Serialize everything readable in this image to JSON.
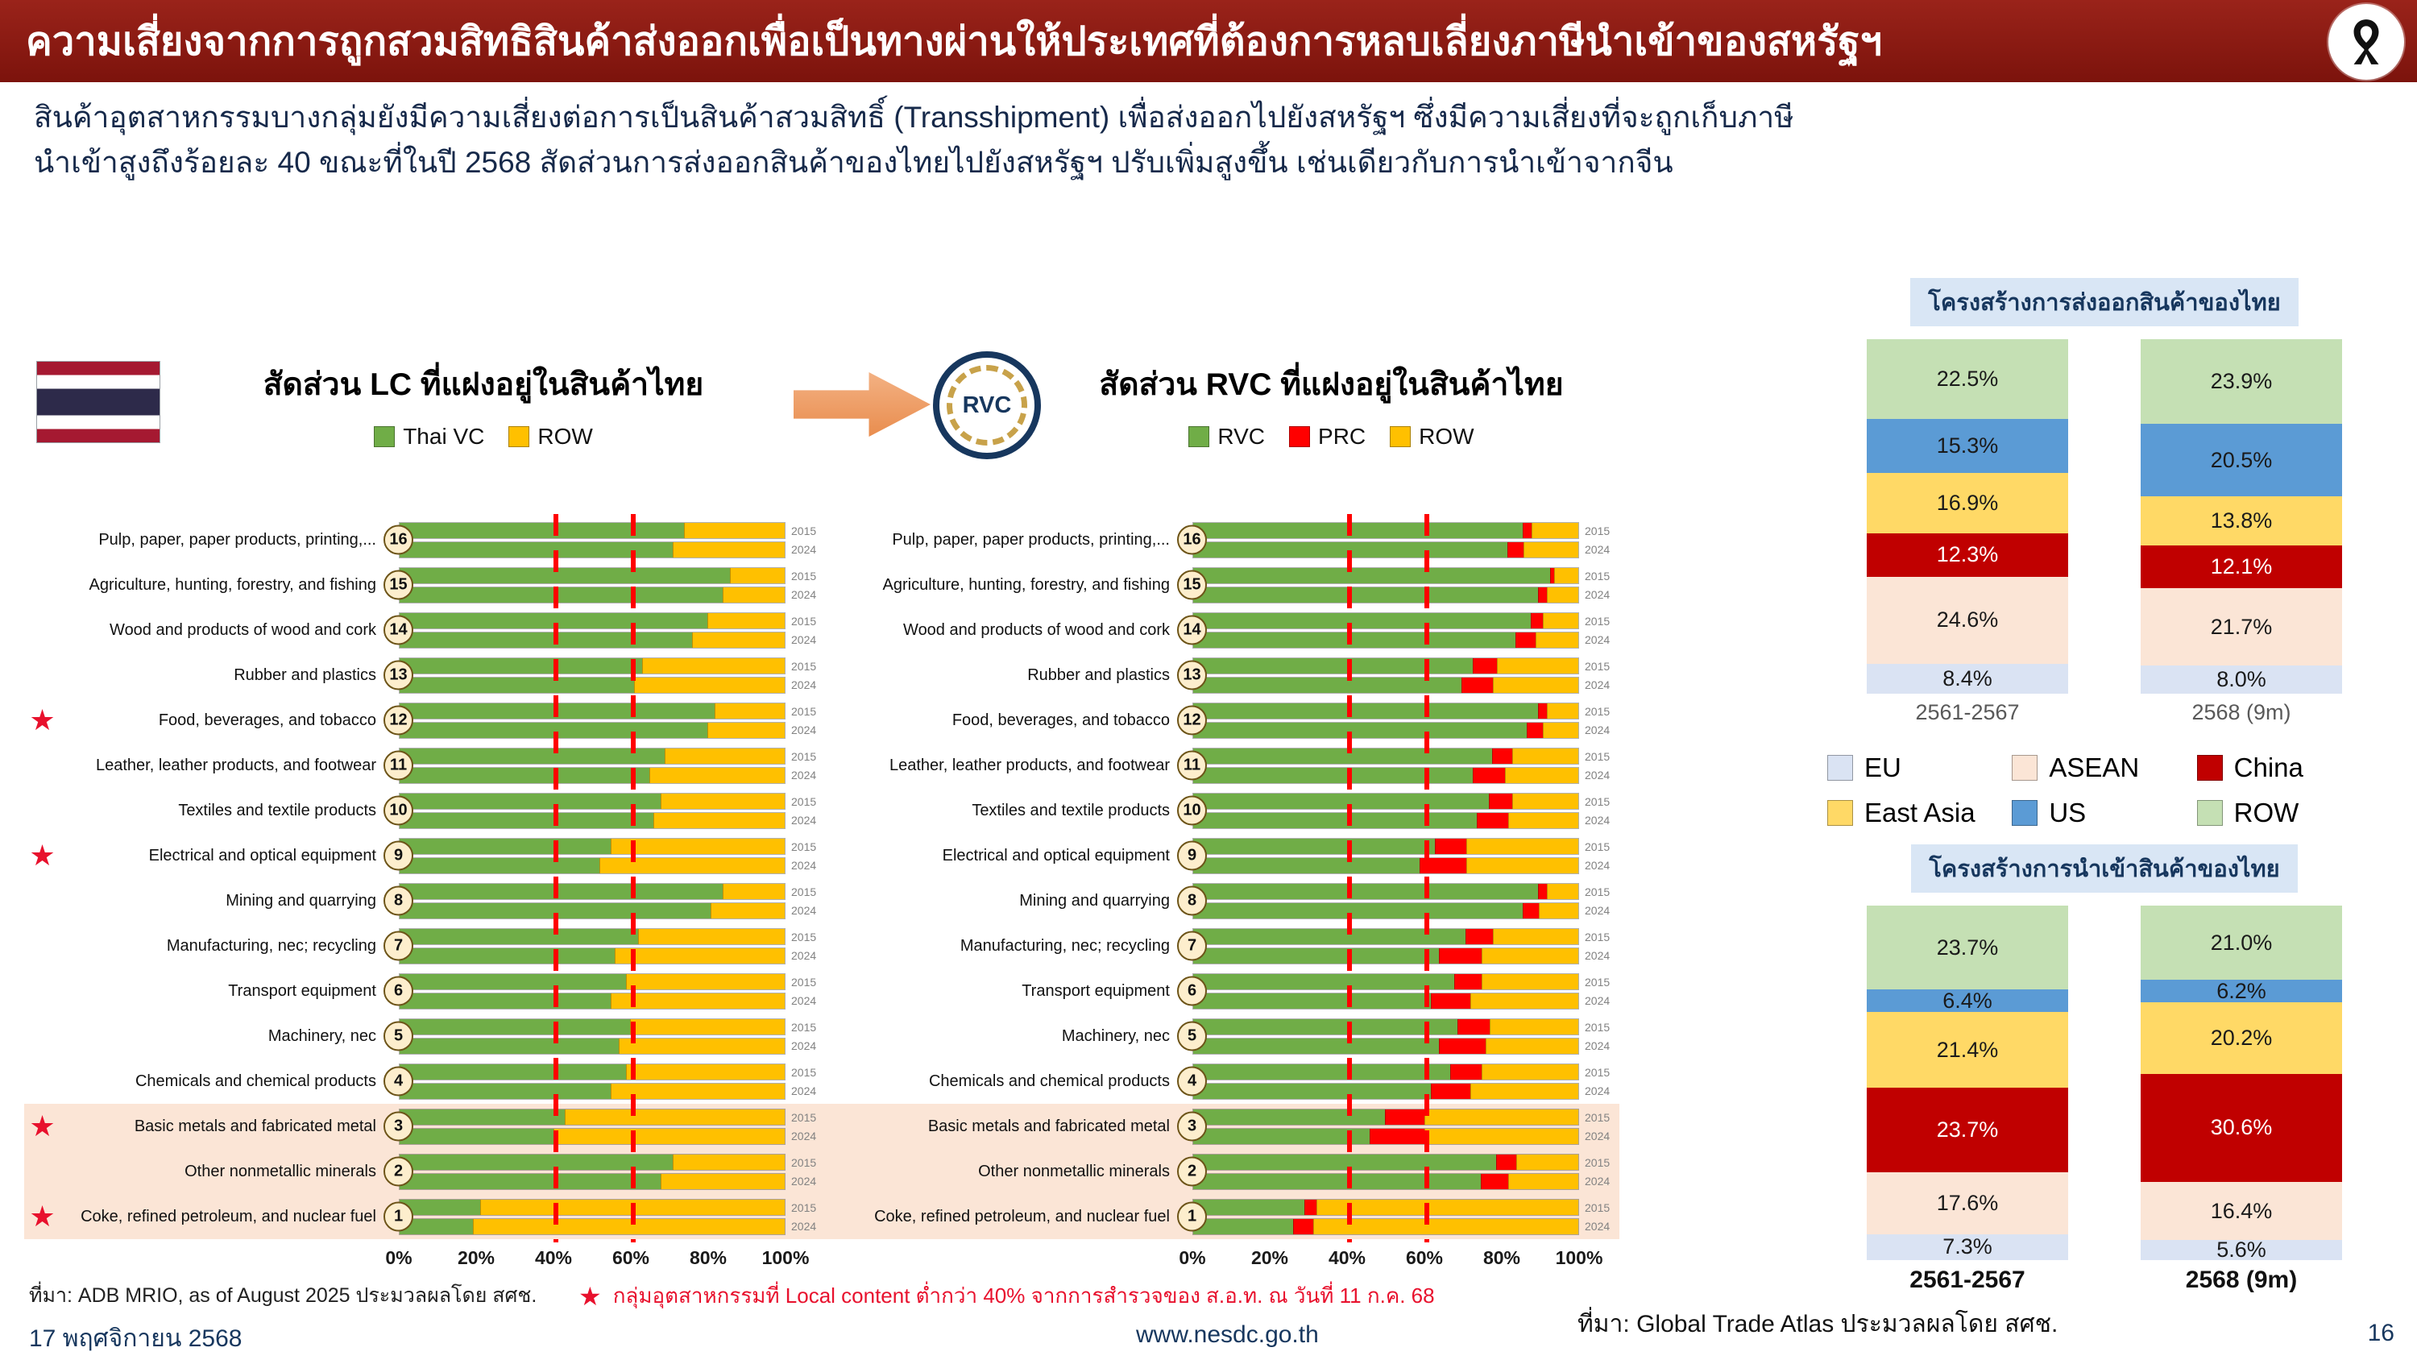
{
  "header": {
    "title": "ความเสี่ยงจากการถูกสวมสิทธิสินค้าส่งออกเพื่อเป็นทางผ่านให้ประเทศที่ต้องการหลบเลี่ยงภาษีนำเข้าของสหรัฐฯ"
  },
  "icons": {
    "ribbon": "mourning-ribbon-icon",
    "flag": "thailand-flag-icon",
    "arrow": "arrow-right-icon",
    "rvc_badge": "rvc-circle-icon",
    "star": "★"
  },
  "labels": {
    "rvc_badge": "RVC"
  },
  "colors": {
    "header_bg": "#8c1712",
    "highlight_band": "#fbe5d6",
    "dashed_line": "#ff0000",
    "star": "#e8112d",
    "title_badge_bg": "#d9e6f5"
  },
  "intro": "สินค้าอุตสาหกรรมบางกลุ่มยังมีความเสี่ยงต่อการเป็นสินค้าสวมสิทธิ์ (Transshipment) เพื่อส่งออกไปยังสหรัฐฯ ซึ่งมีความเสี่ยงที่จะถูกเก็บภาษีนำเข้าสูงถึงร้อยละ 40 ขณะที่ในปี 2568 สัดส่วนการส่งออกสินค้าของไทยไปยังสหรัฐฯ ปรับเพิ่มสูงขึ้น เช่นเดียวกับการนำเข้าจากจีน",
  "chart_data": [
    {
      "id": "lc",
      "type": "bar",
      "orientation": "horizontal",
      "stacked": true,
      "title": "สัดส่วน LC ที่แฝงอยู่ในสินค้าไทย",
      "year_labels": [
        "2015",
        "2024"
      ],
      "x_ticks": [
        "0%",
        "20%",
        "40%",
        "60%",
        "80%",
        "100%"
      ],
      "xlim": [
        0,
        100
      ],
      "dashed_lines_pct": [
        40,
        60
      ],
      "legend": [
        {
          "label": "Thai VC",
          "color": "#70ad47"
        },
        {
          "label": "ROW",
          "color": "#ffc000"
        }
      ],
      "rows": [
        {
          "num": 16,
          "label": "Pulp, paper, paper products, printing,...",
          "star": false,
          "highlight": false,
          "values": {
            "y2015": [
              74,
              26
            ],
            "y2024": [
              71,
              29
            ]
          }
        },
        {
          "num": 15,
          "label": "Agriculture, hunting, forestry, and fishing",
          "star": false,
          "highlight": false,
          "values": {
            "y2015": [
              86,
              14
            ],
            "y2024": [
              84,
              16
            ]
          }
        },
        {
          "num": 14,
          "label": "Wood and products of wood and cork",
          "star": false,
          "highlight": false,
          "values": {
            "y2015": [
              80,
              20
            ],
            "y2024": [
              76,
              24
            ]
          }
        },
        {
          "num": 13,
          "label": "Rubber and plastics",
          "star": false,
          "highlight": false,
          "values": {
            "y2015": [
              63,
              37
            ],
            "y2024": [
              61,
              39
            ]
          }
        },
        {
          "num": 12,
          "label": "Food, beverages, and tobacco",
          "star": true,
          "highlight": false,
          "values": {
            "y2015": [
              82,
              18
            ],
            "y2024": [
              80,
              20
            ]
          }
        },
        {
          "num": 11,
          "label": "Leather, leather products, and footwear",
          "star": false,
          "highlight": false,
          "values": {
            "y2015": [
              69,
              31
            ],
            "y2024": [
              65,
              35
            ]
          }
        },
        {
          "num": 10,
          "label": "Textiles and textile products",
          "star": false,
          "highlight": false,
          "values": {
            "y2015": [
              68,
              32
            ],
            "y2024": [
              66,
              34
            ]
          }
        },
        {
          "num": 9,
          "label": "Electrical and optical equipment",
          "star": true,
          "highlight": false,
          "values": {
            "y2015": [
              55,
              45
            ],
            "y2024": [
              52,
              48
            ]
          }
        },
        {
          "num": 8,
          "label": "Mining and quarrying",
          "star": false,
          "highlight": false,
          "values": {
            "y2015": [
              84,
              16
            ],
            "y2024": [
              81,
              19
            ]
          }
        },
        {
          "num": 7,
          "label": "Manufacturing, nec; recycling",
          "star": false,
          "highlight": false,
          "values": {
            "y2015": [
              62,
              38
            ],
            "y2024": [
              56,
              44
            ]
          }
        },
        {
          "num": 6,
          "label": "Transport equipment",
          "star": false,
          "highlight": false,
          "values": {
            "y2015": [
              59,
              41
            ],
            "y2024": [
              55,
              45
            ]
          }
        },
        {
          "num": 5,
          "label": "Machinery, nec",
          "star": false,
          "highlight": false,
          "values": {
            "y2015": [
              60,
              40
            ],
            "y2024": [
              57,
              43
            ]
          }
        },
        {
          "num": 4,
          "label": "Chemicals and chemical products",
          "star": false,
          "highlight": false,
          "values": {
            "y2015": [
              59,
              41
            ],
            "y2024": [
              55,
              45
            ]
          }
        },
        {
          "num": 3,
          "label": "Basic metals and fabricated metal",
          "star": true,
          "highlight": true,
          "values": {
            "y2015": [
              43,
              57
            ],
            "y2024": [
              40,
              60
            ]
          }
        },
        {
          "num": 2,
          "label": "Other nonmetallic minerals",
          "star": false,
          "highlight": true,
          "values": {
            "y2015": [
              71,
              29
            ],
            "y2024": [
              68,
              32
            ]
          }
        },
        {
          "num": 1,
          "label": "Coke, refined petroleum, and nuclear fuel",
          "star": true,
          "highlight": true,
          "values": {
            "y2015": [
              21,
              79
            ],
            "y2024": [
              19,
              81
            ]
          }
        }
      ]
    },
    {
      "id": "rvc",
      "type": "bar",
      "orientation": "horizontal",
      "stacked": true,
      "title": "สัดส่วน RVC ที่แฝงอยู่ในสินค้าไทย",
      "year_labels": [
        "2015",
        "2024"
      ],
      "x_ticks": [
        "0%",
        "20%",
        "40%",
        "60%",
        "80%",
        "100%"
      ],
      "xlim": [
        0,
        100
      ],
      "dashed_lines_pct": [
        40,
        60
      ],
      "legend": [
        {
          "label": "RVC",
          "color": "#70ad47"
        },
        {
          "label": "PRC",
          "color": "#ff0000"
        },
        {
          "label": "ROW",
          "color": "#ffc000"
        }
      ],
      "rows": [
        {
          "num": 16,
          "label": "Pulp, paper, paper products, printing,...",
          "star": false,
          "highlight": false,
          "values": {
            "y2015": [
              86,
              2,
              12
            ],
            "y2024": [
              82,
              4,
              14
            ]
          }
        },
        {
          "num": 15,
          "label": "Agriculture, hunting, forestry, and fishing",
          "star": false,
          "highlight": false,
          "values": {
            "y2015": [
              93,
              1,
              6
            ],
            "y2024": [
              90,
              2,
              8
            ]
          }
        },
        {
          "num": 14,
          "label": "Wood and products of wood and cork",
          "star": false,
          "highlight": false,
          "values": {
            "y2015": [
              88,
              3,
              9
            ],
            "y2024": [
              84,
              5,
              11
            ]
          }
        },
        {
          "num": 13,
          "label": "Rubber and plastics",
          "star": false,
          "highlight": false,
          "values": {
            "y2015": [
              73,
              6,
              21
            ],
            "y2024": [
              70,
              8,
              22
            ]
          }
        },
        {
          "num": 12,
          "label": "Food, beverages, and tobacco",
          "star": false,
          "highlight": false,
          "values": {
            "y2015": [
              90,
              2,
              8
            ],
            "y2024": [
              87,
              4,
              9
            ]
          }
        },
        {
          "num": 11,
          "label": "Leather, leather products, and footwear",
          "star": false,
          "highlight": false,
          "values": {
            "y2015": [
              78,
              5,
              17
            ],
            "y2024": [
              73,
              8,
              19
            ]
          }
        },
        {
          "num": 10,
          "label": "Textiles and textile products",
          "star": false,
          "highlight": false,
          "values": {
            "y2015": [
              77,
              6,
              17
            ],
            "y2024": [
              74,
              8,
              18
            ]
          }
        },
        {
          "num": 9,
          "label": "Electrical and optical equipment",
          "star": false,
          "highlight": false,
          "values": {
            "y2015": [
              63,
              8,
              29
            ],
            "y2024": [
              59,
              12,
              29
            ]
          }
        },
        {
          "num": 8,
          "label": "Mining and quarrying",
          "star": false,
          "highlight": false,
          "values": {
            "y2015": [
              90,
              2,
              8
            ],
            "y2024": [
              86,
              4,
              10
            ]
          }
        },
        {
          "num": 7,
          "label": "Manufacturing, nec; recycling",
          "star": false,
          "highlight": false,
          "values": {
            "y2015": [
              71,
              7,
              22
            ],
            "y2024": [
              64,
              11,
              25
            ]
          }
        },
        {
          "num": 6,
          "label": "Transport equipment",
          "star": false,
          "highlight": false,
          "values": {
            "y2015": [
              68,
              7,
              25
            ],
            "y2024": [
              62,
              10,
              28
            ]
          }
        },
        {
          "num": 5,
          "label": "Machinery, nec",
          "star": false,
          "highlight": false,
          "values": {
            "y2015": [
              69,
              8,
              23
            ],
            "y2024": [
              64,
              12,
              24
            ]
          }
        },
        {
          "num": 4,
          "label": "Chemicals and chemical products",
          "star": false,
          "highlight": false,
          "values": {
            "y2015": [
              67,
              8,
              25
            ],
            "y2024": [
              62,
              10,
              28
            ]
          }
        },
        {
          "num": 3,
          "label": "Basic metals and fabricated metal",
          "star": false,
          "highlight": true,
          "values": {
            "y2015": [
              50,
              10,
              40
            ],
            "y2024": [
              46,
              14,
              40
            ]
          }
        },
        {
          "num": 2,
          "label": "Other nonmetallic minerals",
          "star": false,
          "highlight": true,
          "values": {
            "y2015": [
              79,
              5,
              16
            ],
            "y2024": [
              75,
              7,
              18
            ]
          }
        },
        {
          "num": 1,
          "label": "Coke, refined petroleum, and nuclear fuel",
          "star": false,
          "highlight": true,
          "values": {
            "y2015": [
              29,
              3,
              68
            ],
            "y2024": [
              26,
              5,
              69
            ]
          }
        }
      ]
    },
    {
      "id": "export_structure",
      "type": "bar",
      "stacked": true,
      "title": "โครงสร้างการส่งออกสินค้าของไทย",
      "categories": [
        "2561-2567",
        "2568 (9m)"
      ],
      "stack_order": "bottom-to-top",
      "ylim": [
        0,
        100
      ],
      "series": [
        {
          "name": "EU",
          "color": "#dae3f3",
          "values": [
            8.4,
            8.0
          ]
        },
        {
          "name": "ASEAN",
          "color": "#fbe5d6",
          "values": [
            24.6,
            21.7
          ]
        },
        {
          "name": "China",
          "color": "#c00000",
          "values": [
            12.3,
            12.1
          ],
          "label_color": "#ffffff"
        },
        {
          "name": "East Asia",
          "color": "#ffd966",
          "values": [
            16.9,
            13.8
          ]
        },
        {
          "name": "US",
          "color": "#5b9bd5",
          "values": [
            15.3,
            20.5
          ]
        },
        {
          "name": "ROW",
          "color": "#c5e0b4",
          "values": [
            22.5,
            23.9
          ]
        }
      ]
    },
    {
      "id": "import_structure",
      "type": "bar",
      "stacked": true,
      "title": "โครงสร้างการนำเข้าสินค้าของไทย",
      "categories": [
        "2561-2567",
        "2568 (9m)"
      ],
      "stack_order": "bottom-to-top",
      "ylim": [
        0,
        100
      ],
      "series": [
        {
          "name": "EU",
          "color": "#dae3f3",
          "values": [
            7.3,
            5.6
          ]
        },
        {
          "name": "ASEAN",
          "color": "#fbe5d6",
          "values": [
            17.6,
            16.4
          ]
        },
        {
          "name": "China",
          "color": "#c00000",
          "values": [
            23.7,
            30.6
          ],
          "label_color": "#ffffff"
        },
        {
          "name": "East Asia",
          "color": "#ffd966",
          "values": [
            21.4,
            20.2
          ]
        },
        {
          "name": "US",
          "color": "#5b9bd5",
          "values": [
            6.4,
            6.2
          ]
        },
        {
          "name": "ROW",
          "color": "#c5e0b4",
          "values": [
            23.7,
            21.0
          ]
        }
      ]
    }
  ],
  "right_panel": {
    "export_title": "โครงสร้างการส่งออกสินค้าของไทย",
    "import_title": "โครงสร้างการนำเข้าสินค้าของไทย",
    "source": "ที่มา: Global Trade Atlas ประมวลผลโดย สศช."
  },
  "footnotes": {
    "left": "ที่มา: ADB MRIO, as of August 2025 ประมวลผลโดย สศช.",
    "star_note": "กลุ่มอุตสาหกรรมที่ Local content ต่ำกว่า 40% จากการสำรวจของ ส.อ.ท. ณ วันที่ 11 ก.ค. 68"
  },
  "footer": {
    "date": "17 พฤศจิกายน 2568",
    "url": "www.nesdc.go.th",
    "page": "16"
  }
}
